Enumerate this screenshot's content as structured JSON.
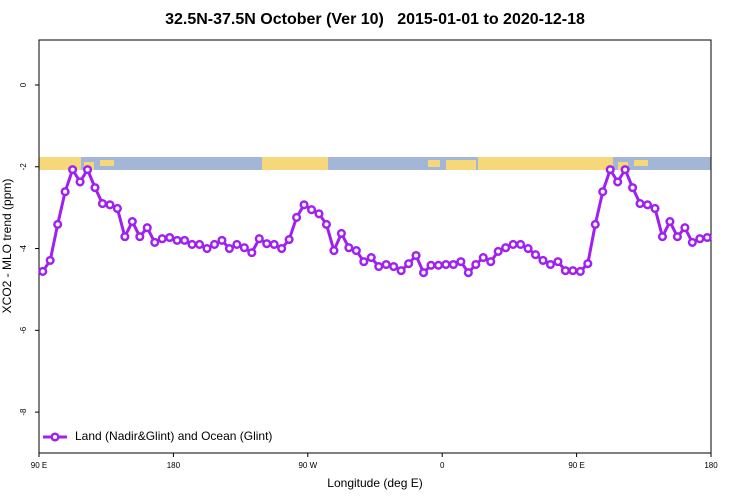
{
  "chart_data": {
    "type": "line",
    "title": "32.5N-37.5N October (Ver 10)   2015-01-01 to 2020-12-18",
    "xlabel": "Longitude (deg E)",
    "ylabel": "XCO2 - MLO trend (ppm)",
    "xlim": [
      90,
      540
    ],
    "ylim": [
      -9,
      1.1
    ],
    "xticks": [
      {
        "value": 90,
        "label": "90 E"
      },
      180,
      {
        "value": 270,
        "label": "90 W"
      },
      {
        "value": 360,
        "label": "0"
      },
      {
        "value": 450,
        "label": "90 E"
      },
      {
        "value": 540,
        "label": "180"
      }
    ],
    "yticks": [
      0,
      -2,
      -4,
      -6,
      -8
    ],
    "legend": "bottom-left",
    "x": [
      92.5,
      97.5,
      102.5,
      107.5,
      112.5,
      117.5,
      122.5,
      127.5,
      132.5,
      137.5,
      142.5,
      147.5,
      152.5,
      157.5,
      162.5,
      167.5,
      172.5,
      177.5,
      182.5,
      187.5,
      192.5,
      197.5,
      202.5,
      207.5,
      212.5,
      217.5,
      222.5,
      227.5,
      232.5,
      237.5,
      242.5,
      247.5,
      252.5,
      257.5,
      262.5,
      267.5,
      272.5,
      277.5,
      282.5,
      287.5,
      292.5,
      297.5,
      302.5,
      307.5,
      312.5,
      317.5,
      322.5,
      327.5,
      332.5,
      337.5,
      342.5,
      347.5,
      352.5,
      357.5,
      362.5,
      367.5,
      372.5,
      377.5,
      382.5,
      387.5,
      392.5,
      397.5,
      402.5,
      407.5,
      412.5,
      417.5,
      422.5,
      427.5,
      432.5,
      437.5,
      442.5,
      447.5,
      452.5,
      457.5,
      462.5,
      467.5,
      472.5,
      477.5,
      482.5,
      487.5,
      492.5,
      497.5,
      502.5,
      507.5,
      512.5,
      517.5,
      522.5,
      527.5,
      532.5,
      537.5
    ],
    "series": [
      {
        "name": "Land (Nadir&Glint) and Ocean (Glint)",
        "color": "#a020f0",
        "values": [
          -4.56,
          -4.29,
          -3.41,
          -2.61,
          -2.07,
          -2.37,
          -2.07,
          -2.51,
          -2.9,
          -2.93,
          -3.02,
          -3.71,
          -3.34,
          -3.71,
          -3.49,
          -3.85,
          -3.76,
          -3.73,
          -3.8,
          -3.8,
          -3.9,
          -3.9,
          -4.0,
          -3.9,
          -3.8,
          -4.0,
          -3.9,
          -3.98,
          -4.1,
          -3.76,
          -3.88,
          -3.9,
          -4.0,
          -3.78,
          -3.24,
          -2.93,
          -3.05,
          -3.15,
          -3.41,
          -4.05,
          -3.63,
          -3.98,
          -4.05,
          -4.32,
          -4.22,
          -4.44,
          -4.39,
          -4.44,
          -4.54,
          -4.37,
          -4.17,
          -4.59,
          -4.41,
          -4.41,
          -4.39,
          -4.39,
          -4.32,
          -4.59,
          -4.39,
          -4.22,
          -4.32,
          -4.07,
          -3.98,
          -3.9,
          -3.9,
          -4.0,
          -4.15,
          -4.29,
          -4.39,
          -4.32,
          -4.54,
          -4.54,
          -4.56,
          -4.37,
          -3.41,
          -2.61,
          -2.07,
          -2.37,
          -2.07,
          -2.51,
          -2.9,
          -2.93,
          -3.02,
          -3.71,
          -3.34,
          -3.71,
          -3.49,
          -3.85,
          -3.76,
          -3.73
        ]
      }
    ]
  }
}
